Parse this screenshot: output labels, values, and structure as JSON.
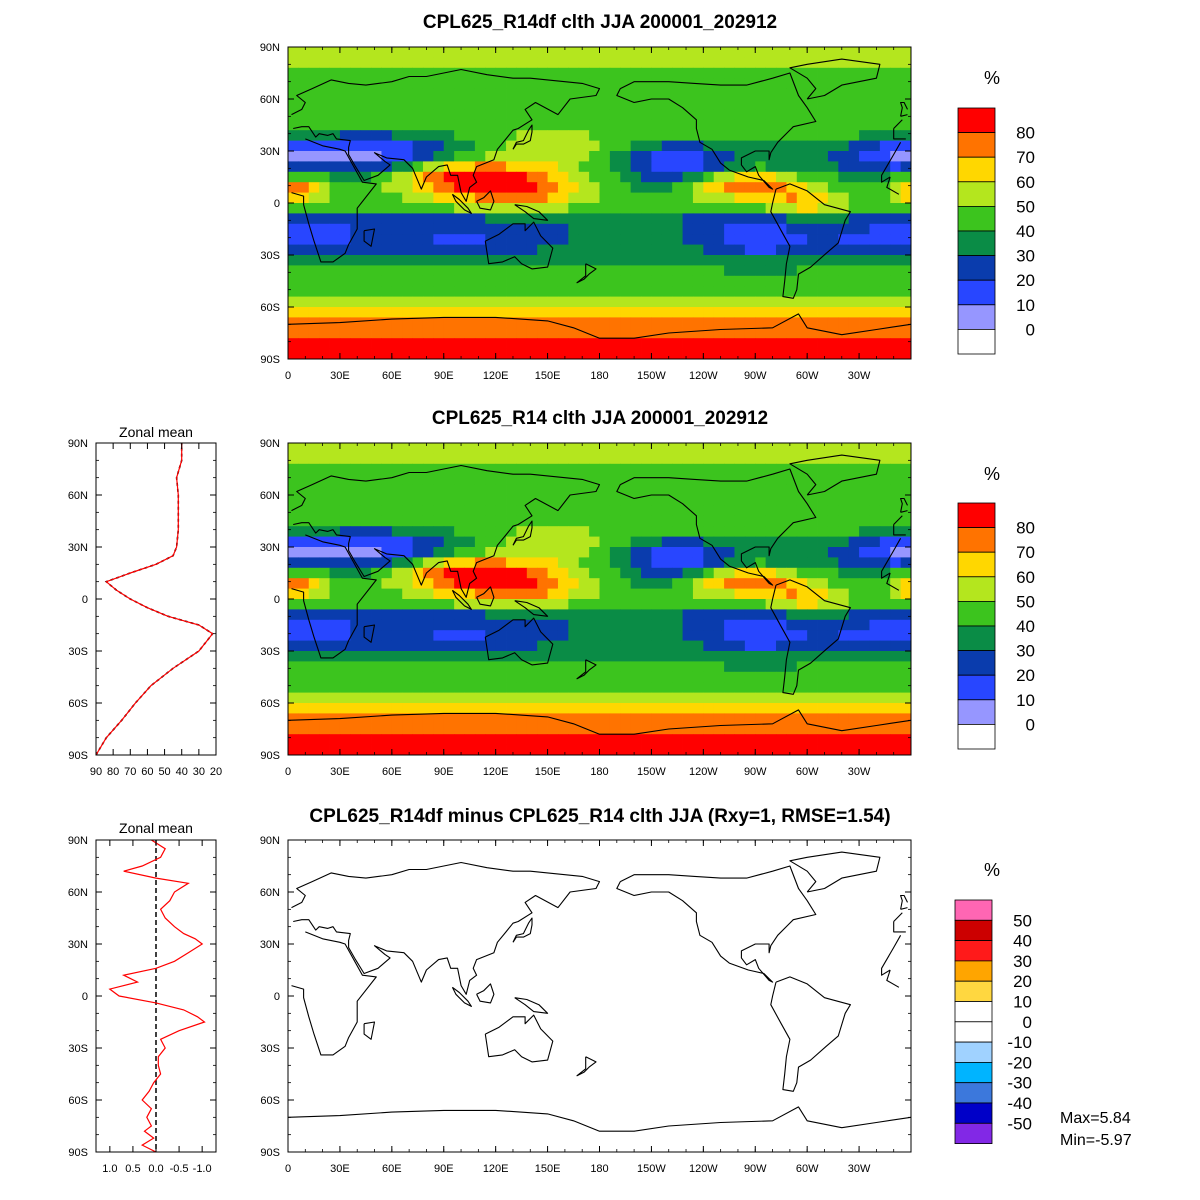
{
  "chart_data": [
    {
      "type": "heatmap",
      "panel": "top",
      "title": "CPL625_R14df clth JJA 200001_202912",
      "xticks": [
        "0",
        "30E",
        "60E",
        "90E",
        "120E",
        "150E",
        "180",
        "150W",
        "120W",
        "90W",
        "60W",
        "30W"
      ],
      "yticks": [
        "90N",
        "60N",
        "30N",
        "0",
        "30S",
        "60S",
        "90S"
      ],
      "colorbar": {
        "unit": "%",
        "levels": [
          "80",
          "70",
          "60",
          "50",
          "40",
          "30",
          "20",
          "10",
          "0"
        ],
        "colors": [
          "#ff0000",
          "#ff7300",
          "#ffd700",
          "#b4e61e",
          "#3cc41e",
          "#0a8c46",
          "#0a3cad",
          "#2846ff",
          "#9696ff",
          "#ffffff"
        ]
      }
    },
    {
      "type": "heatmap",
      "panel": "middle",
      "title": "CPL625_R14 clth JJA 200001_202912",
      "xticks": [
        "0",
        "30E",
        "60E",
        "90E",
        "120E",
        "150E",
        "180",
        "150W",
        "120W",
        "90W",
        "60W",
        "30W"
      ],
      "yticks": [
        "90N",
        "60N",
        "30N",
        "0",
        "30S",
        "60S",
        "90S"
      ],
      "colorbar": {
        "unit": "%",
        "levels": [
          "80",
          "70",
          "60",
          "50",
          "40",
          "30",
          "20",
          "10",
          "0"
        ],
        "colors": [
          "#ff0000",
          "#ff7300",
          "#ffd700",
          "#b4e61e",
          "#3cc41e",
          "#0a8c46",
          "#0a3cad",
          "#2846ff",
          "#9696ff",
          "#ffffff"
        ]
      }
    },
    {
      "type": "heatmap",
      "panel": "bottom",
      "title": "CPL625_R14df minus CPL625_R14 clth JJA (Rxy=1, RMSE=1.54)",
      "xticks": [
        "0",
        "30E",
        "60E",
        "90E",
        "120E",
        "150E",
        "180",
        "150W",
        "120W",
        "90W",
        "60W",
        "30W"
      ],
      "yticks": [
        "90N",
        "60N",
        "30N",
        "0",
        "30S",
        "60S",
        "90S"
      ],
      "colorbar": {
        "unit": "%",
        "levels": [
          "50",
          "40",
          "30",
          "20",
          "10",
          "0",
          "-10",
          "-20",
          "-30",
          "-40",
          "-50"
        ],
        "colors": [
          "#ff66b3",
          "#cc0000",
          "#ff1a1a",
          "#ffa500",
          "#ffd740",
          "#ffffff",
          "#ffffff",
          "#a0d2ff",
          "#00b4ff",
          "#3c78dc",
          "#0000c8",
          "#8228e6"
        ]
      },
      "max_label": "Max=5.84",
      "min_label": "Min=-5.97"
    },
    {
      "type": "line",
      "panel": "zonal-mean-middle",
      "title": "Zonal mean",
      "xticks": [
        "90",
        "80",
        "70",
        "60",
        "50",
        "40",
        "30",
        "20"
      ],
      "yticks": [
        "90N",
        "60N",
        "30N",
        "0",
        "30S",
        "60S",
        "90S"
      ],
      "xlim": [
        90,
        20
      ],
      "ylim": [
        -90,
        90
      ],
      "series": [
        {
          "color": "#ff0000",
          "lat": [
            -90,
            -80,
            -70,
            -60,
            -50,
            -40,
            -30,
            -20,
            -15,
            -10,
            -5,
            0,
            5,
            10,
            15,
            20,
            25,
            30,
            40,
            50,
            60,
            70,
            80,
            90
          ],
          "values": [
            90,
            84,
            75,
            67,
            58,
            45,
            30,
            22,
            30,
            48,
            60,
            70,
            78,
            84,
            70,
            55,
            45,
            43,
            42,
            42,
            42,
            43,
            40,
            40
          ]
        }
      ]
    },
    {
      "type": "line",
      "panel": "zonal-mean-bottom",
      "title": "Zonal mean",
      "xticks": [
        "1.0",
        "0.5",
        "0.0",
        "-0.5",
        "-1.0"
      ],
      "yticks": [
        "90N",
        "60N",
        "30N",
        "0",
        "30S",
        "60S",
        "90S"
      ],
      "xlim": [
        1.3,
        -1.3
      ],
      "ylim": [
        -90,
        90
      ],
      "series": [
        {
          "color": "#ff0000",
          "lat": [
            -90,
            -86,
            -82,
            -78,
            -75,
            -70,
            -65,
            -60,
            -55,
            -50,
            -45,
            -40,
            -35,
            -30,
            -25,
            -20,
            -15,
            -12,
            -8,
            -4,
            0,
            4,
            8,
            12,
            16,
            20,
            25,
            30,
            33,
            36,
            40,
            45,
            50,
            55,
            60,
            65,
            68,
            72,
            75,
            80,
            85,
            90
          ],
          "values": [
            0.0,
            0.3,
            0.05,
            0.25,
            0.1,
            0.2,
            0.1,
            0.3,
            0.15,
            0.05,
            -0.1,
            -0.05,
            -0.05,
            -0.2,
            -0.1,
            -0.5,
            -1.05,
            -0.9,
            -0.6,
            0.0,
            0.8,
            1.0,
            0.4,
            0.7,
            0.0,
            -0.4,
            -0.7,
            -1.0,
            -0.85,
            -0.6,
            -0.4,
            -0.2,
            -0.1,
            -0.3,
            -0.4,
            -0.7,
            0.0,
            0.7,
            0.3,
            -0.1,
            -0.2,
            0.1
          ]
        }
      ]
    }
  ]
}
